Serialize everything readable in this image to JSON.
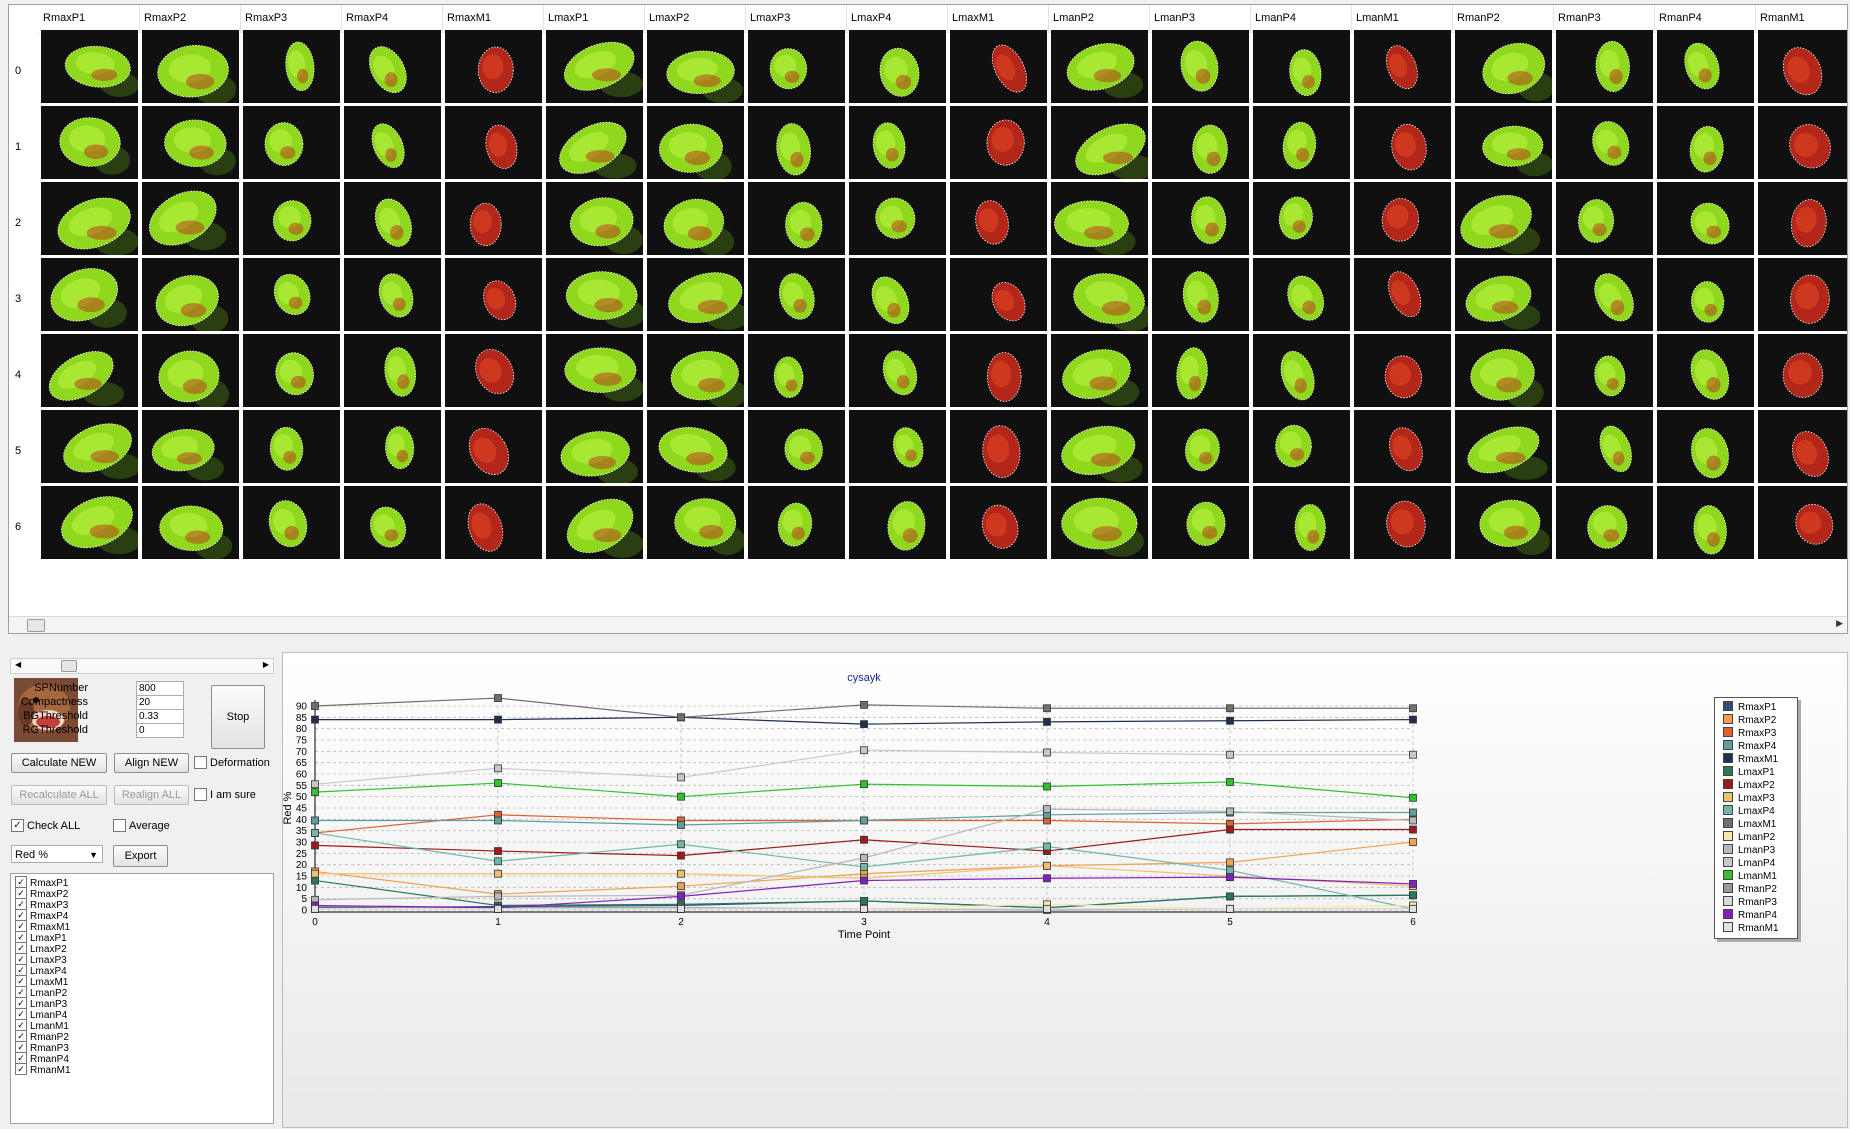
{
  "grid": {
    "columns": [
      "RmaxP1",
      "RmaxP2",
      "RmaxP3",
      "RmaxP4",
      "RmaxM1",
      "LmaxP1",
      "LmaxP2",
      "LmaxP3",
      "LmaxP4",
      "LmaxM1",
      "LmanP2",
      "LmanP3",
      "LmanP4",
      "LmanM1",
      "RmanP2",
      "RmanP3",
      "RmanP4",
      "RmanM1"
    ],
    "rows": [
      "0",
      "1",
      "2",
      "3",
      "4",
      "5",
      "6"
    ]
  },
  "controls": {
    "fields": [
      {
        "label": "SPNumber",
        "value": "800"
      },
      {
        "label": "Compactness",
        "value": "20"
      },
      {
        "label": "BGThreshold",
        "value": "0.33"
      },
      {
        "label": "RGThreshold",
        "value": "0"
      }
    ],
    "stop_label": "Stop",
    "calculate_new_label": "Calculate NEW",
    "align_new_label": "Align NEW",
    "deformation_label": "Deformation",
    "recalculate_all_label": "Recalculate ALL",
    "realign_all_label": "Realign ALL",
    "i_am_sure_label": "I am sure",
    "check_all_label": "Check ALL",
    "average_label": "Average",
    "metric_value": "Red %",
    "export_label": "Export"
  },
  "chart_data": {
    "type": "line",
    "title": "cysayk",
    "xlabel": "Time Point",
    "ylabel": "Red %",
    "x": [
      0,
      1,
      2,
      3,
      4,
      5,
      6
    ],
    "xlim": [
      0,
      6
    ],
    "ylim": [
      0,
      90
    ],
    "yticks": [
      0,
      5,
      10,
      15,
      20,
      25,
      30,
      35,
      40,
      45,
      50,
      55,
      60,
      65,
      70,
      75,
      80,
      85,
      90
    ],
    "grid": true,
    "legend": "right",
    "series": [
      {
        "name": "RmaxP1",
        "color": "#2f4f7f",
        "values": [
          1,
          1.5,
          2,
          4,
          1,
          6,
          6.5
        ]
      },
      {
        "name": "RmaxP2",
        "color": "#f0a050",
        "values": [
          17,
          7,
          10.5,
          16,
          19.5,
          21,
          30
        ]
      },
      {
        "name": "RmaxP3",
        "color": "#e06030",
        "values": [
          34,
          42,
          39.5,
          39.5,
          39.5,
          38,
          40
        ]
      },
      {
        "name": "RmaxP4",
        "color": "#5f9ea0",
        "values": [
          39.5,
          39.5,
          37.5,
          39.5,
          42,
          43,
          43
        ]
      },
      {
        "name": "RmaxM1",
        "color": "#1f2f4f",
        "values": [
          84,
          84,
          85,
          82,
          83,
          83.5,
          84
        ]
      },
      {
        "name": "LmaxP1",
        "color": "#2a7a5a",
        "values": [
          13,
          2,
          2.5,
          4,
          1,
          6,
          6.5
        ]
      },
      {
        "name": "LmaxP2",
        "color": "#a01818",
        "values": [
          28.5,
          26,
          24,
          31,
          26,
          35.5,
          35.5
        ]
      },
      {
        "name": "LmaxP3",
        "color": "#f0c070",
        "values": [
          16,
          16,
          16,
          14,
          19.5,
          15,
          10.5
        ]
      },
      {
        "name": "LmaxP4",
        "color": "#6fb8a8",
        "values": [
          34,
          21.5,
          29,
          19,
          28,
          17.5,
          0.5
        ]
      },
      {
        "name": "LmaxM1",
        "color": "#707070",
        "values": [
          90,
          93.5,
          85,
          90.5,
          89,
          89,
          89
        ]
      },
      {
        "name": "LmanP2",
        "color": "#f5e9a8",
        "values": [
          0.5,
          0.5,
          0.5,
          0.5,
          2.5,
          0.5,
          2
        ]
      },
      {
        "name": "LmanP3",
        "color": "#b8b8b8",
        "values": [
          4.5,
          6,
          6.5,
          23,
          44.5,
          43.5,
          39.5
        ]
      },
      {
        "name": "LmanP4",
        "color": "#c8c8c8",
        "values": [
          55.5,
          62.5,
          58.5,
          70.5,
          69.5,
          68.5,
          68.5
        ]
      },
      {
        "name": "LmanM1",
        "color": "#30c030",
        "values": [
          52,
          56,
          50,
          55.5,
          54.5,
          56.5,
          49.5
        ]
      },
      {
        "name": "RmanP2",
        "color": "#9a9a9a",
        "values": [
          1.5,
          1,
          1,
          0.5,
          0,
          0.5,
          0.5
        ]
      },
      {
        "name": "RmanP3",
        "color": "#d8d8d8",
        "values": [
          0.5,
          0.5,
          0.5,
          0.5,
          0.5,
          0.5,
          0.5
        ]
      },
      {
        "name": "RmanP4",
        "color": "#8020c0",
        "values": [
          2,
          1,
          6,
          13,
          14,
          14.5,
          11.5
        ]
      },
      {
        "name": "RmanM1",
        "color": "#e0e0e0",
        "values": [
          0.5,
          0.5,
          0.5,
          0.5,
          0.5,
          0.5,
          0.5
        ]
      }
    ]
  }
}
